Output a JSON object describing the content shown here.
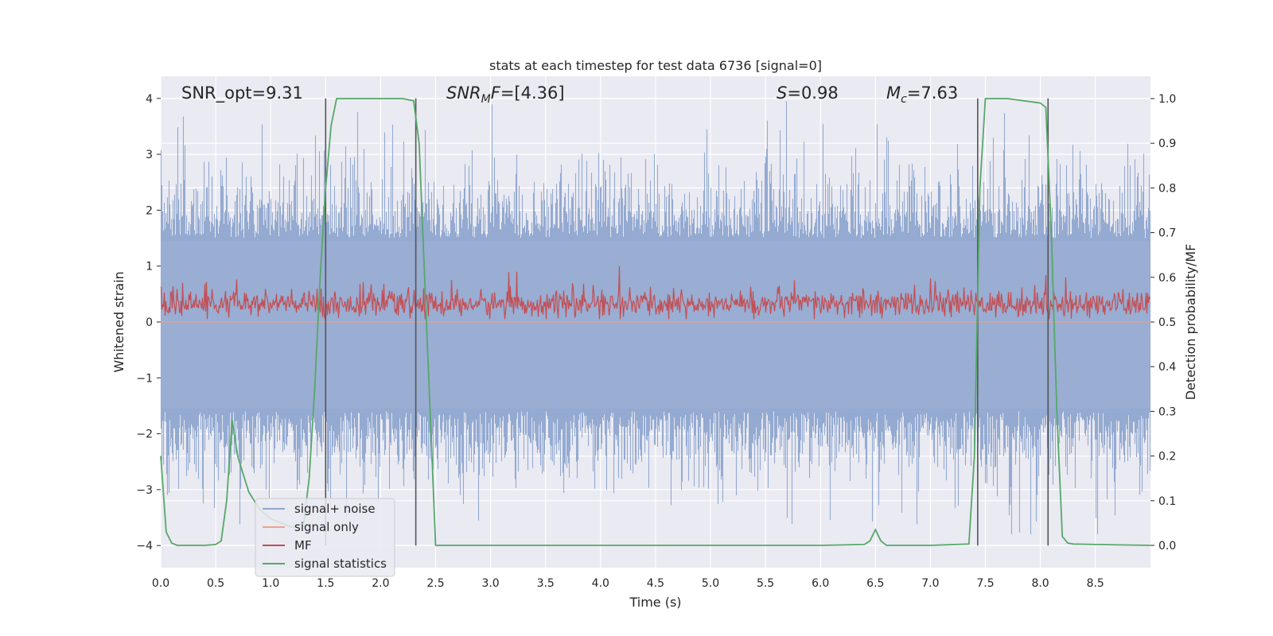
{
  "chart_data": {
    "type": "line",
    "title": "stats at each timestep for test data 6736 [signal=0]",
    "xlabel": "Time (s)",
    "ylabel": "Whitened strain",
    "y2label": "Detection probability/MF",
    "xlim": [
      0,
      9
    ],
    "ylim": [
      -4.4,
      4.4
    ],
    "y2lim": [
      -0.05,
      1.05
    ],
    "grid": true,
    "legend_position": "lower-left",
    "x_ticks": [
      "0.0",
      "0.5",
      "1.0",
      "1.5",
      "2.0",
      "2.5",
      "3.0",
      "3.5",
      "4.0",
      "4.5",
      "5.0",
      "5.5",
      "6.0",
      "6.5",
      "7.0",
      "7.5",
      "8.0",
      "8.5"
    ],
    "x_tick_values": [
      0,
      0.5,
      1,
      1.5,
      2,
      2.5,
      3,
      3.5,
      4,
      4.5,
      5,
      5.5,
      6,
      6.5,
      7,
      7.5,
      8,
      8.5
    ],
    "y_ticks": [
      "4",
      "3",
      "2",
      "1",
      "0",
      "−1",
      "−2",
      "−3",
      "−4"
    ],
    "y_tick_values": [
      4,
      3,
      2,
      1,
      0,
      -1,
      -2,
      -3,
      -4
    ],
    "y2_ticks": [
      "1.0",
      "0.9",
      "0.8",
      "0.7",
      "0.6",
      "0.5",
      "0.4",
      "0.3",
      "0.2",
      "0.1",
      "0.0"
    ],
    "y2_tick_values": [
      1.0,
      0.9,
      0.8,
      0.7,
      0.6,
      0.5,
      0.4,
      0.3,
      0.2,
      0.1,
      0.0
    ],
    "annotations": [
      {
        "text": "SNR_opt=9.31",
        "x": 0.2
      },
      {
        "text": "SNR_MF=[4.36]",
        "x": 2.6
      },
      {
        "text": "S=0.98",
        "x": 5.6
      },
      {
        "text": "M_c=7.63",
        "x": 6.6
      }
    ],
    "legend": [
      "signal+ noise",
      "signal only",
      "MF",
      "signal statistics"
    ],
    "colors": {
      "signal_noise": "#8fa6cf",
      "signal_only": "#e8a48a",
      "mf": "#c44e52",
      "signal_statistics": "#55a868",
      "vlines": "#555555",
      "plot_bg": "#eaeaf2"
    },
    "series": [
      {
        "name": "signal+ noise",
        "axis": "left",
        "note": "whitened noisy strain, roughly symmetric about 0, envelope about ±2 with spikes to about ±3.5",
        "envelope_max": 4.0,
        "envelope_min": -3.8
      },
      {
        "name": "signal only",
        "axis": "left",
        "values": "flat at 0 (signal=0)"
      },
      {
        "name": "MF",
        "axis": "left",
        "note": "matched filter output, band roughly 0.1 to 0.6 with spikes up to about 1.0"
      },
      {
        "name": "signal statistics",
        "axis": "right",
        "x": [
          0.0,
          0.05,
          0.1,
          0.15,
          0.2,
          0.3,
          0.4,
          0.5,
          0.55,
          0.6,
          0.65,
          0.7,
          0.75,
          0.8,
          0.85,
          0.9,
          0.95,
          1.0,
          1.1,
          1.2,
          1.3,
          1.35,
          1.4,
          1.45,
          1.5,
          1.55,
          1.6,
          1.7,
          1.8,
          2.0,
          2.2,
          2.3,
          2.35,
          2.4,
          2.45,
          2.5,
          3.0,
          4.0,
          5.0,
          6.0,
          6.4,
          6.45,
          6.5,
          6.55,
          6.6,
          7.0,
          7.35,
          7.4,
          7.45,
          7.5,
          7.7,
          8.0,
          8.05,
          8.1,
          8.15,
          8.2,
          8.25,
          8.3,
          8.5,
          9.0
        ],
        "values": [
          0.2,
          0.03,
          0.005,
          0.0,
          0.0,
          0.0,
          0.0,
          0.002,
          0.01,
          0.1,
          0.28,
          0.2,
          0.16,
          0.12,
          0.1,
          0.08,
          0.07,
          0.06,
          0.05,
          0.04,
          0.05,
          0.15,
          0.35,
          0.6,
          0.8,
          0.94,
          1.0,
          1.0,
          1.0,
          1.0,
          1.0,
          0.995,
          0.9,
          0.6,
          0.3,
          0.0,
          0.0,
          0.0,
          0.0,
          0.0,
          0.002,
          0.01,
          0.035,
          0.01,
          0.0,
          0.0,
          0.003,
          0.2,
          0.8,
          1.0,
          1.0,
          0.99,
          0.98,
          0.7,
          0.3,
          0.02,
          0.005,
          0.003,
          0.002,
          0.0
        ]
      }
    ],
    "vertical_lines": [
      1.5,
      2.32,
      7.43,
      8.07
    ]
  }
}
